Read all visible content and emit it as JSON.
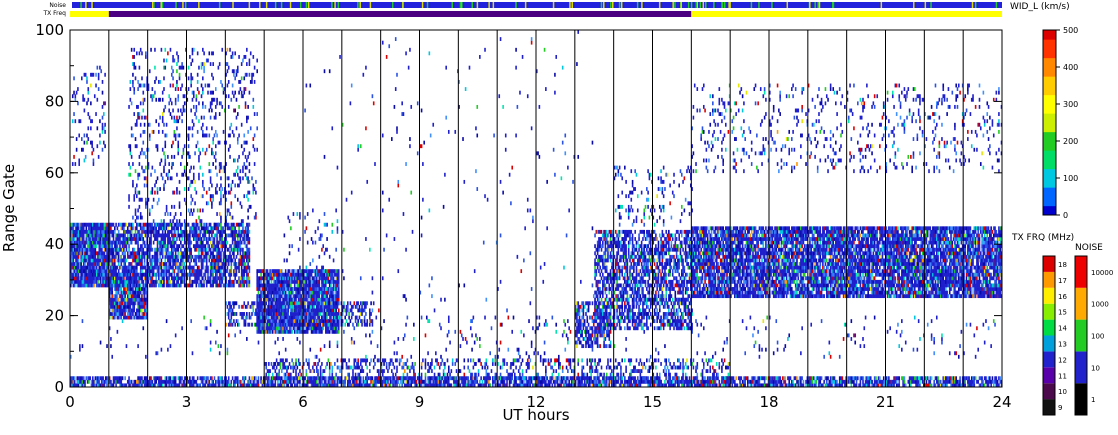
{
  "chart_data": {
    "type": "heatmap",
    "xlabel": "UT hours",
    "ylabel": "Range Gate",
    "xlim": [
      0,
      24
    ],
    "ylim": [
      0,
      100
    ],
    "x_ticks": [
      "0",
      "3",
      "6",
      "9",
      "12",
      "15",
      "18",
      "21",
      "24"
    ],
    "y_ticks": [
      "0",
      "20",
      "40",
      "60",
      "80",
      "100"
    ],
    "x_tick_values": [
      0,
      3,
      6,
      9,
      12,
      15,
      18,
      21,
      24
    ],
    "y_tick_values": [
      0,
      20,
      40,
      60,
      80,
      100
    ],
    "hour_gridlines": true,
    "status_bars": {
      "noise_label": "Noise",
      "txfreq_label": "TX Freq",
      "txfreq_segments": [
        {
          "start": 0,
          "end": 1,
          "color": "#ffff00"
        },
        {
          "start": 1,
          "end": 16,
          "color": "#4b0082"
        },
        {
          "start": 16,
          "end": 24,
          "color": "#ffff00"
        }
      ]
    },
    "colorbar_width": {
      "title": "WID_L (km/s)",
      "ticks": [
        "0",
        "100",
        "200",
        "300",
        "400",
        "500"
      ],
      "tick_values": [
        0,
        100,
        200,
        300,
        400,
        500
      ],
      "range": [
        0,
        500
      ]
    },
    "colorbar_txfreq": {
      "title": "TX FRQ (MHz)",
      "ticks": [
        "9",
        "10",
        "11",
        "12",
        "13",
        "14",
        "15",
        "16",
        "17",
        "18"
      ]
    },
    "colorbar_noise": {
      "title": "NOISE",
      "ticks": [
        "1",
        "10",
        "100",
        "1000",
        "10000"
      ]
    },
    "regions": [
      {
        "x0": 0.0,
        "x1": 1.0,
        "y0": 28,
        "y1": 46,
        "density": 0.95
      },
      {
        "x0": 0.05,
        "x1": 0.9,
        "y0": 62,
        "y1": 90,
        "density": 0.12
      },
      {
        "x0": 1.0,
        "x1": 2.0,
        "y0": 19,
        "y1": 32,
        "density": 0.9
      },
      {
        "x0": 1.0,
        "x1": 4.6,
        "y0": 28,
        "y1": 46,
        "density": 0.75
      },
      {
        "x0": 1.5,
        "x1": 4.8,
        "y0": 45,
        "y1": 95,
        "density": 0.16
      },
      {
        "x0": 4.8,
        "x1": 6.9,
        "y0": 15,
        "y1": 33,
        "density": 0.92
      },
      {
        "x0": 4.0,
        "x1": 7.8,
        "y0": 17,
        "y1": 24,
        "density": 0.45
      },
      {
        "x0": 5.5,
        "x1": 7.0,
        "y0": 33,
        "y1": 50,
        "density": 0.07
      },
      {
        "x0": 5.0,
        "x1": 17.0,
        "y0": 0,
        "y1": 8,
        "density": 0.3
      },
      {
        "x0": 0.0,
        "x1": 24.0,
        "y0": 0,
        "y1": 3,
        "density": 0.75
      },
      {
        "x0": 6.0,
        "x1": 13.5,
        "y0": 0,
        "y1": 100,
        "density": 0.012
      },
      {
        "x0": 13.0,
        "x1": 13.9,
        "y0": 11,
        "y1": 24,
        "density": 0.55
      },
      {
        "x0": 13.5,
        "x1": 16.0,
        "y0": 16,
        "y1": 44,
        "density": 0.62
      },
      {
        "x0": 14.0,
        "x1": 16.0,
        "y0": 45,
        "y1": 62,
        "density": 0.12
      },
      {
        "x0": 16.0,
        "x1": 24.0,
        "y0": 25,
        "y1": 45,
        "density": 0.85
      },
      {
        "x0": 16.0,
        "x1": 24.0,
        "y0": 60,
        "y1": 85,
        "density": 0.1
      },
      {
        "x0": 0.0,
        "x1": 24.0,
        "y0": 8,
        "y1": 20,
        "density": 0.03
      }
    ]
  }
}
